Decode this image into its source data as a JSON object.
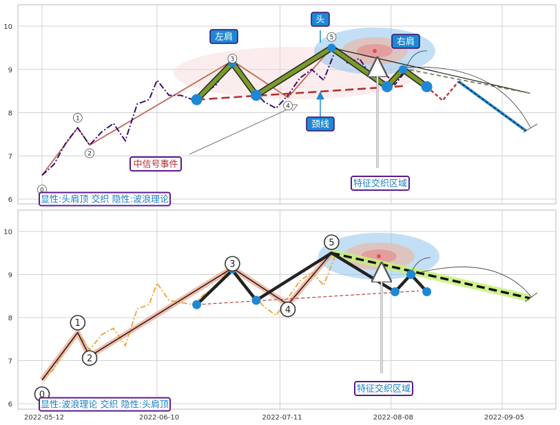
{
  "colors": {
    "grid": "#d0d0d0",
    "frame": "#b9b9b9",
    "price_top": "#3b0a6e",
    "price_bottom": "#f0a030",
    "hs_fill": "#7a9a2a",
    "hs_edge": "#222222",
    "node": "#1e88d4",
    "neckline": "#b03030",
    "ellipse_blue": "#90c4ec",
    "ellipse_pink": "#f6d6d8",
    "ellipse_red": "#e05050",
    "label_bg": "#1e88d4",
    "label_border": "#3b0a6e",
    "box_text": "#1a7fc1",
    "box_border": "#5b1a8e",
    "wave_top": "#e8b0a0",
    "wave_band": "#f2a890",
    "target_band": "#c8f07a",
    "proj_dash": "#111111",
    "proj_red": "#c03030",
    "proj_blue": "#1e88d4"
  },
  "chart_data": [
    {
      "type": "line",
      "title": "",
      "xlabel": "",
      "ylabel": "",
      "ylim": [
        5.85,
        10.5
      ],
      "grid": true,
      "y_ticks": [
        "6",
        "7",
        "8",
        "9",
        "10"
      ],
      "series": [
        {
          "role": "price",
          "x": [
            "2022-05-12",
            "2022-05-15",
            "2022-05-18",
            "2022-05-21",
            "2022-05-24",
            "2022-05-27",
            "2022-05-30",
            "2022-06-02",
            "2022-06-05",
            "2022-06-08",
            "2022-06-10",
            "2022-06-13",
            "2022-06-16",
            "2022-06-19",
            "2022-06-22",
            "2022-06-25",
            "2022-06-28",
            "2022-07-01",
            "2022-07-04",
            "2022-07-07",
            "2022-07-10",
            "2022-07-13",
            "2022-07-16",
            "2022-07-19",
            "2022-07-22",
            "2022-07-25",
            "2022-07-28",
            "2022-07-31",
            "2022-08-03",
            "2022-08-06",
            "2022-08-09",
            "2022-08-12"
          ],
          "values": [
            6.55,
            6.8,
            7.3,
            7.65,
            7.25,
            7.55,
            7.75,
            7.35,
            8.2,
            8.3,
            8.75,
            8.4,
            8.4,
            8.3,
            8.45,
            8.65,
            9.15,
            8.95,
            8.55,
            8.25,
            8.1,
            8.4,
            8.8,
            9.0,
            8.75,
            9.45,
            9.15,
            9.25,
            8.85,
            8.95,
            8.65,
            9.0
          ]
        },
        {
          "role": "wave",
          "x": [
            "2022-05-12",
            "2022-05-21",
            "2022-05-24",
            "2022-06-29",
            "2022-07-13",
            "2022-07-24"
          ],
          "values": [
            6.55,
            7.65,
            7.25,
            9.2,
            8.35,
            9.5
          ]
        },
        {
          "role": "head-and-shoulders",
          "x": [
            "2022-06-20",
            "2022-06-29",
            "2022-07-05",
            "2022-07-24",
            "2022-08-07",
            "2022-08-11",
            "2022-08-17"
          ],
          "values": [
            8.3,
            9.15,
            8.4,
            9.5,
            8.6,
            9.0,
            8.6
          ]
        },
        {
          "role": "neckline",
          "x": [
            "2022-06-20",
            "2022-08-12"
          ],
          "values": [
            8.3,
            8.62
          ]
        },
        {
          "role": "projection",
          "x": [
            "2022-08-17",
            "2022-08-21",
            "2022-08-25",
            "2022-09-11"
          ],
          "values": [
            8.6,
            8.28,
            8.72,
            7.58
          ]
        },
        {
          "role": "trend",
          "x": [
            "2022-07-24",
            "2022-09-12"
          ],
          "values": [
            9.5,
            8.45
          ]
        }
      ],
      "wave_labels": [
        {
          "text": "0",
          "x": "2022-05-12",
          "y": 6.22
        },
        {
          "text": "1",
          "x": "2022-05-21",
          "y": 7.88
        },
        {
          "text": "2",
          "x": "2022-05-24",
          "y": 7.06
        },
        {
          "text": "3",
          "x": "2022-06-29",
          "y": 9.25
        },
        {
          "text": "4",
          "x": "2022-07-13",
          "y": 8.16
        },
        {
          "text": "5",
          "x": "2022-07-24",
          "y": 9.75
        }
      ],
      "callouts": {
        "left_shoulder": "左肩",
        "head": "头",
        "right_shoulder": "右肩",
        "neckline": "颈线",
        "mid_signal": "中信号事件",
        "feature_zone": "特征交织区域",
        "summary": "显性:头肩顶 交织 隐性:波浪理论"
      }
    },
    {
      "type": "line",
      "title": "",
      "xlabel": "",
      "ylabel": "",
      "ylim": [
        5.85,
        10.5
      ],
      "grid": true,
      "y_ticks": [
        "6",
        "7",
        "8",
        "9",
        "10"
      ],
      "x_ticks": [
        "2022-05-12",
        "2022-06-10",
        "2022-07-11",
        "2022-08-08",
        "2022-09-05"
      ],
      "series": [
        {
          "role": "price",
          "x": [
            "2022-05-12",
            "2022-05-15",
            "2022-05-18",
            "2022-05-21",
            "2022-05-24",
            "2022-05-27",
            "2022-05-30",
            "2022-06-02",
            "2022-06-05",
            "2022-06-08",
            "2022-06-10",
            "2022-06-13",
            "2022-06-16",
            "2022-06-19",
            "2022-06-22",
            "2022-06-25",
            "2022-06-28",
            "2022-07-01",
            "2022-07-04",
            "2022-07-07",
            "2022-07-10",
            "2022-07-13",
            "2022-07-16",
            "2022-07-19",
            "2022-07-22",
            "2022-07-25"
          ],
          "values": [
            6.55,
            6.8,
            7.3,
            7.65,
            7.25,
            7.6,
            7.75,
            7.35,
            8.2,
            8.3,
            8.8,
            8.4,
            8.35,
            8.3,
            8.55,
            8.7,
            9.15,
            8.9,
            8.55,
            8.25,
            8.05,
            8.45,
            8.85,
            9.05,
            8.75,
            9.45
          ]
        },
        {
          "role": "wave",
          "x": [
            "2022-05-12",
            "2022-05-21",
            "2022-05-24",
            "2022-06-29",
            "2022-07-13",
            "2022-07-24"
          ],
          "values": [
            6.55,
            7.65,
            7.1,
            9.15,
            8.3,
            9.5
          ]
        },
        {
          "role": "head-and-shoulders",
          "x": [
            "2022-06-20",
            "2022-06-29",
            "2022-07-05",
            "2022-07-24",
            "2022-08-09",
            "2022-08-13",
            "2022-08-17"
          ],
          "values": [
            8.3,
            9.1,
            8.4,
            9.5,
            8.6,
            9.0,
            8.6
          ]
        },
        {
          "role": "neckline",
          "x": [
            "2022-06-20",
            "2022-08-15"
          ],
          "values": [
            8.3,
            8.62
          ]
        },
        {
          "role": "target",
          "x": [
            "2022-07-24",
            "2022-09-12"
          ],
          "values": [
            9.5,
            8.45
          ]
        }
      ],
      "wave_labels": [
        {
          "text": "0",
          "x": "2022-05-12",
          "y": 6.22
        },
        {
          "text": "1",
          "x": "2022-05-21",
          "y": 7.88
        },
        {
          "text": "2",
          "x": "2022-05-24",
          "y": 7.06
        },
        {
          "text": "3",
          "x": "2022-06-29",
          "y": 9.25
        },
        {
          "text": "4",
          "x": "2022-07-13",
          "y": 8.19
        },
        {
          "text": "5",
          "x": "2022-07-24",
          "y": 9.75
        }
      ],
      "callouts": {
        "feature_zone": "特征交织区域",
        "summary": "显性:波浪理论 交织 隐性:头肩顶"
      }
    }
  ]
}
